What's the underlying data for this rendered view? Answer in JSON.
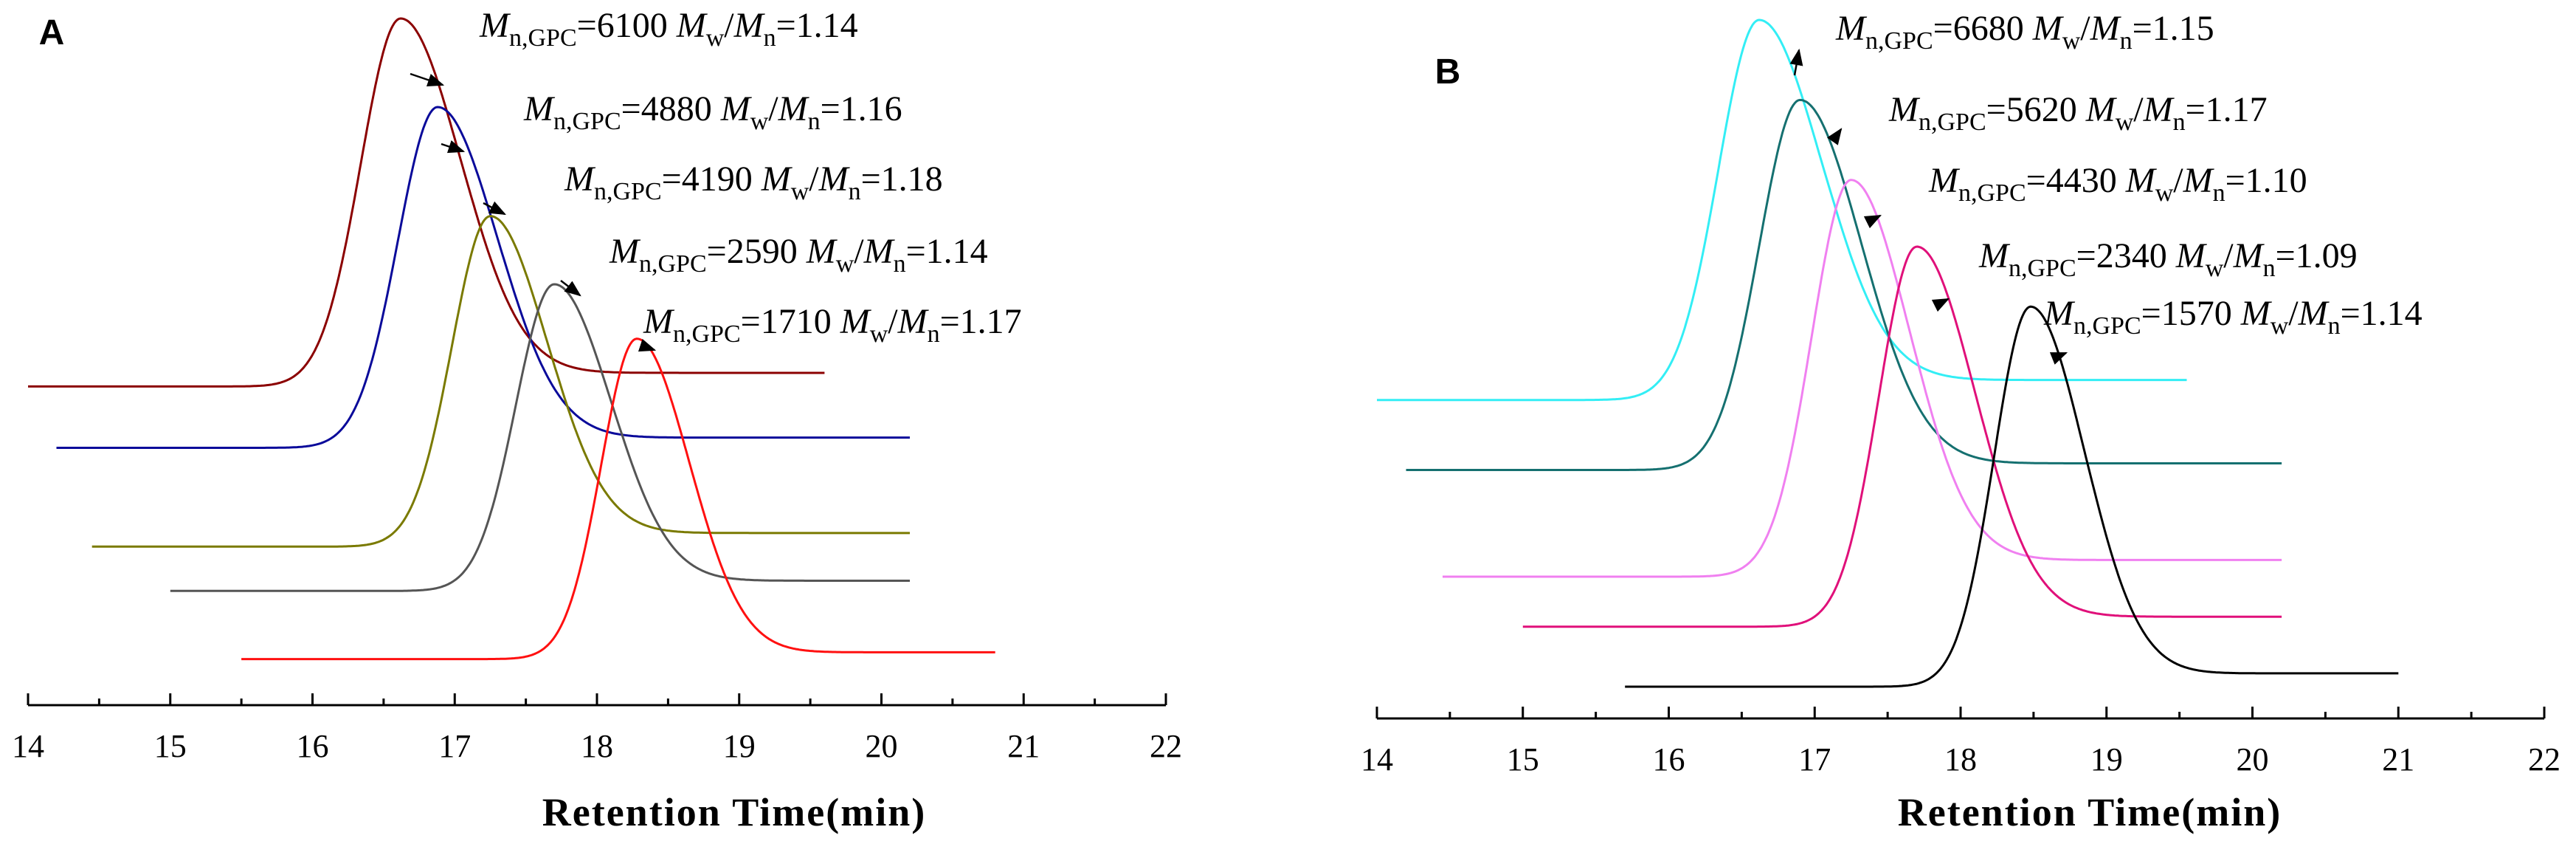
{
  "chart_data": [
    {
      "type": "line",
      "panel_label": "A",
      "xlabel": "Retention Time(min)",
      "xlim": [
        14,
        22
      ],
      "x_ticks": [
        "14",
        "15",
        "16",
        "17",
        "18",
        "19",
        "20",
        "21",
        "22"
      ],
      "grid": false,
      "y_axis_shown": false,
      "series": [
        {
          "color": "#8B0000",
          "peak_x": 16.62,
          "sigma_left": 0.28,
          "sigma_right": 0.42,
          "x_range": [
            14.0,
            19.6
          ],
          "peak_level": 1.0,
          "baseline_level": 0.46,
          "baseline_end_level": 0.48,
          "annotation": {
            "mn_label": "n,GPC",
            "mn_value": "=6100",
            "mw": "w",
            "mn_sub": "n",
            "dispersity": "=1.14"
          }
        },
        {
          "color": "#0A0A9A",
          "peak_x": 16.88,
          "sigma_left": 0.28,
          "sigma_right": 0.42,
          "x_range": [
            14.2,
            20.2
          ],
          "peak_level": 0.87,
          "baseline_level": 0.37,
          "baseline_end_level": 0.385,
          "annotation": {
            "mn_label": "n,GPC",
            "mn_value": "=4880",
            "mw": "w",
            "mn_sub": "n",
            "dispersity": "=1.16"
          }
        },
        {
          "color": "#7A7A00",
          "peak_x": 17.25,
          "sigma_left": 0.27,
          "sigma_right": 0.4,
          "x_range": [
            14.45,
            20.2
          ],
          "peak_level": 0.71,
          "baseline_level": 0.225,
          "baseline_end_level": 0.245,
          "annotation": {
            "mn_label": "n,GPC",
            "mn_value": "=4190",
            "mw": "w",
            "mn_sub": "n",
            "dispersity": "=1.18"
          }
        },
        {
          "color": "#555555",
          "peak_x": 17.7,
          "sigma_left": 0.27,
          "sigma_right": 0.4,
          "x_range": [
            15.0,
            20.2
          ],
          "peak_level": 0.61,
          "baseline_level": 0.16,
          "baseline_end_level": 0.175,
          "annotation": {
            "mn_label": "n,GPC",
            "mn_value": "=2590",
            "mw": "w",
            "mn_sub": "n",
            "dispersity": "=1.14"
          }
        },
        {
          "color": "#FF1010",
          "peak_x": 18.28,
          "sigma_left": 0.25,
          "sigma_right": 0.37,
          "x_range": [
            15.5,
            20.8
          ],
          "peak_level": 0.53,
          "baseline_level": 0.06,
          "baseline_end_level": 0.07,
          "annotation": {
            "mn_label": "n,GPC",
            "mn_value": "=1710",
            "mw": "w",
            "mn_sub": "n",
            "dispersity": "=1.17"
          }
        }
      ]
    },
    {
      "type": "line",
      "panel_label": "B",
      "xlabel": "Retention Time(min)",
      "xlim": [
        14,
        22
      ],
      "x_ticks": [
        "14",
        "15",
        "16",
        "17",
        "18",
        "19",
        "20",
        "21",
        "22"
      ],
      "grid": false,
      "y_axis_shown": false,
      "series": [
        {
          "color": "#33EEF5",
          "peak_x": 16.62,
          "sigma_left": 0.28,
          "sigma_right": 0.43,
          "x_range": [
            14.0,
            19.55
          ],
          "peak_level": 1.0,
          "baseline_level": 0.43,
          "baseline_end_level": 0.46,
          "annotation": {
            "mn_label": "n,GPC",
            "mn_value": "=6680",
            "mw": "w",
            "mn_sub": "n",
            "dispersity": "=1.15"
          }
        },
        {
          "color": "#157070",
          "peak_x": 16.9,
          "sigma_left": 0.28,
          "sigma_right": 0.42,
          "x_range": [
            14.2,
            20.2
          ],
          "peak_level": 0.88,
          "baseline_level": 0.325,
          "baseline_end_level": 0.335,
          "annotation": {
            "mn_label": "n,GPC",
            "mn_value": "=5620",
            "mw": "w",
            "mn_sub": "n",
            "dispersity": "=1.17"
          }
        },
        {
          "color": "#F080F0",
          "peak_x": 17.25,
          "sigma_left": 0.27,
          "sigma_right": 0.4,
          "x_range": [
            14.45,
            20.2
          ],
          "peak_level": 0.76,
          "baseline_level": 0.165,
          "baseline_end_level": 0.19,
          "annotation": {
            "mn_label": "n,GPC",
            "mn_value": "=4430",
            "mw": "w",
            "mn_sub": "n",
            "dispersity": "=1.10"
          }
        },
        {
          "color": "#E0107A",
          "peak_x": 17.7,
          "sigma_left": 0.26,
          "sigma_right": 0.4,
          "x_range": [
            15.0,
            20.2
          ],
          "peak_level": 0.66,
          "baseline_level": 0.09,
          "baseline_end_level": 0.105,
          "annotation": {
            "mn_label": "n,GPC",
            "mn_value": "=2340",
            "mw": "w",
            "mn_sub": "n",
            "dispersity": "=1.09"
          }
        },
        {
          "color": "#000000",
          "peak_x": 18.48,
          "sigma_left": 0.25,
          "sigma_right": 0.37,
          "x_range": [
            15.7,
            21.0
          ],
          "peak_level": 0.57,
          "baseline_level": 0.0,
          "baseline_end_level": 0.02,
          "annotation": {
            "mn_label": "n,GPC",
            "mn_value": "=1570",
            "mw": "w",
            "mn_sub": "n",
            "dispersity": "=1.14"
          }
        }
      ]
    }
  ]
}
